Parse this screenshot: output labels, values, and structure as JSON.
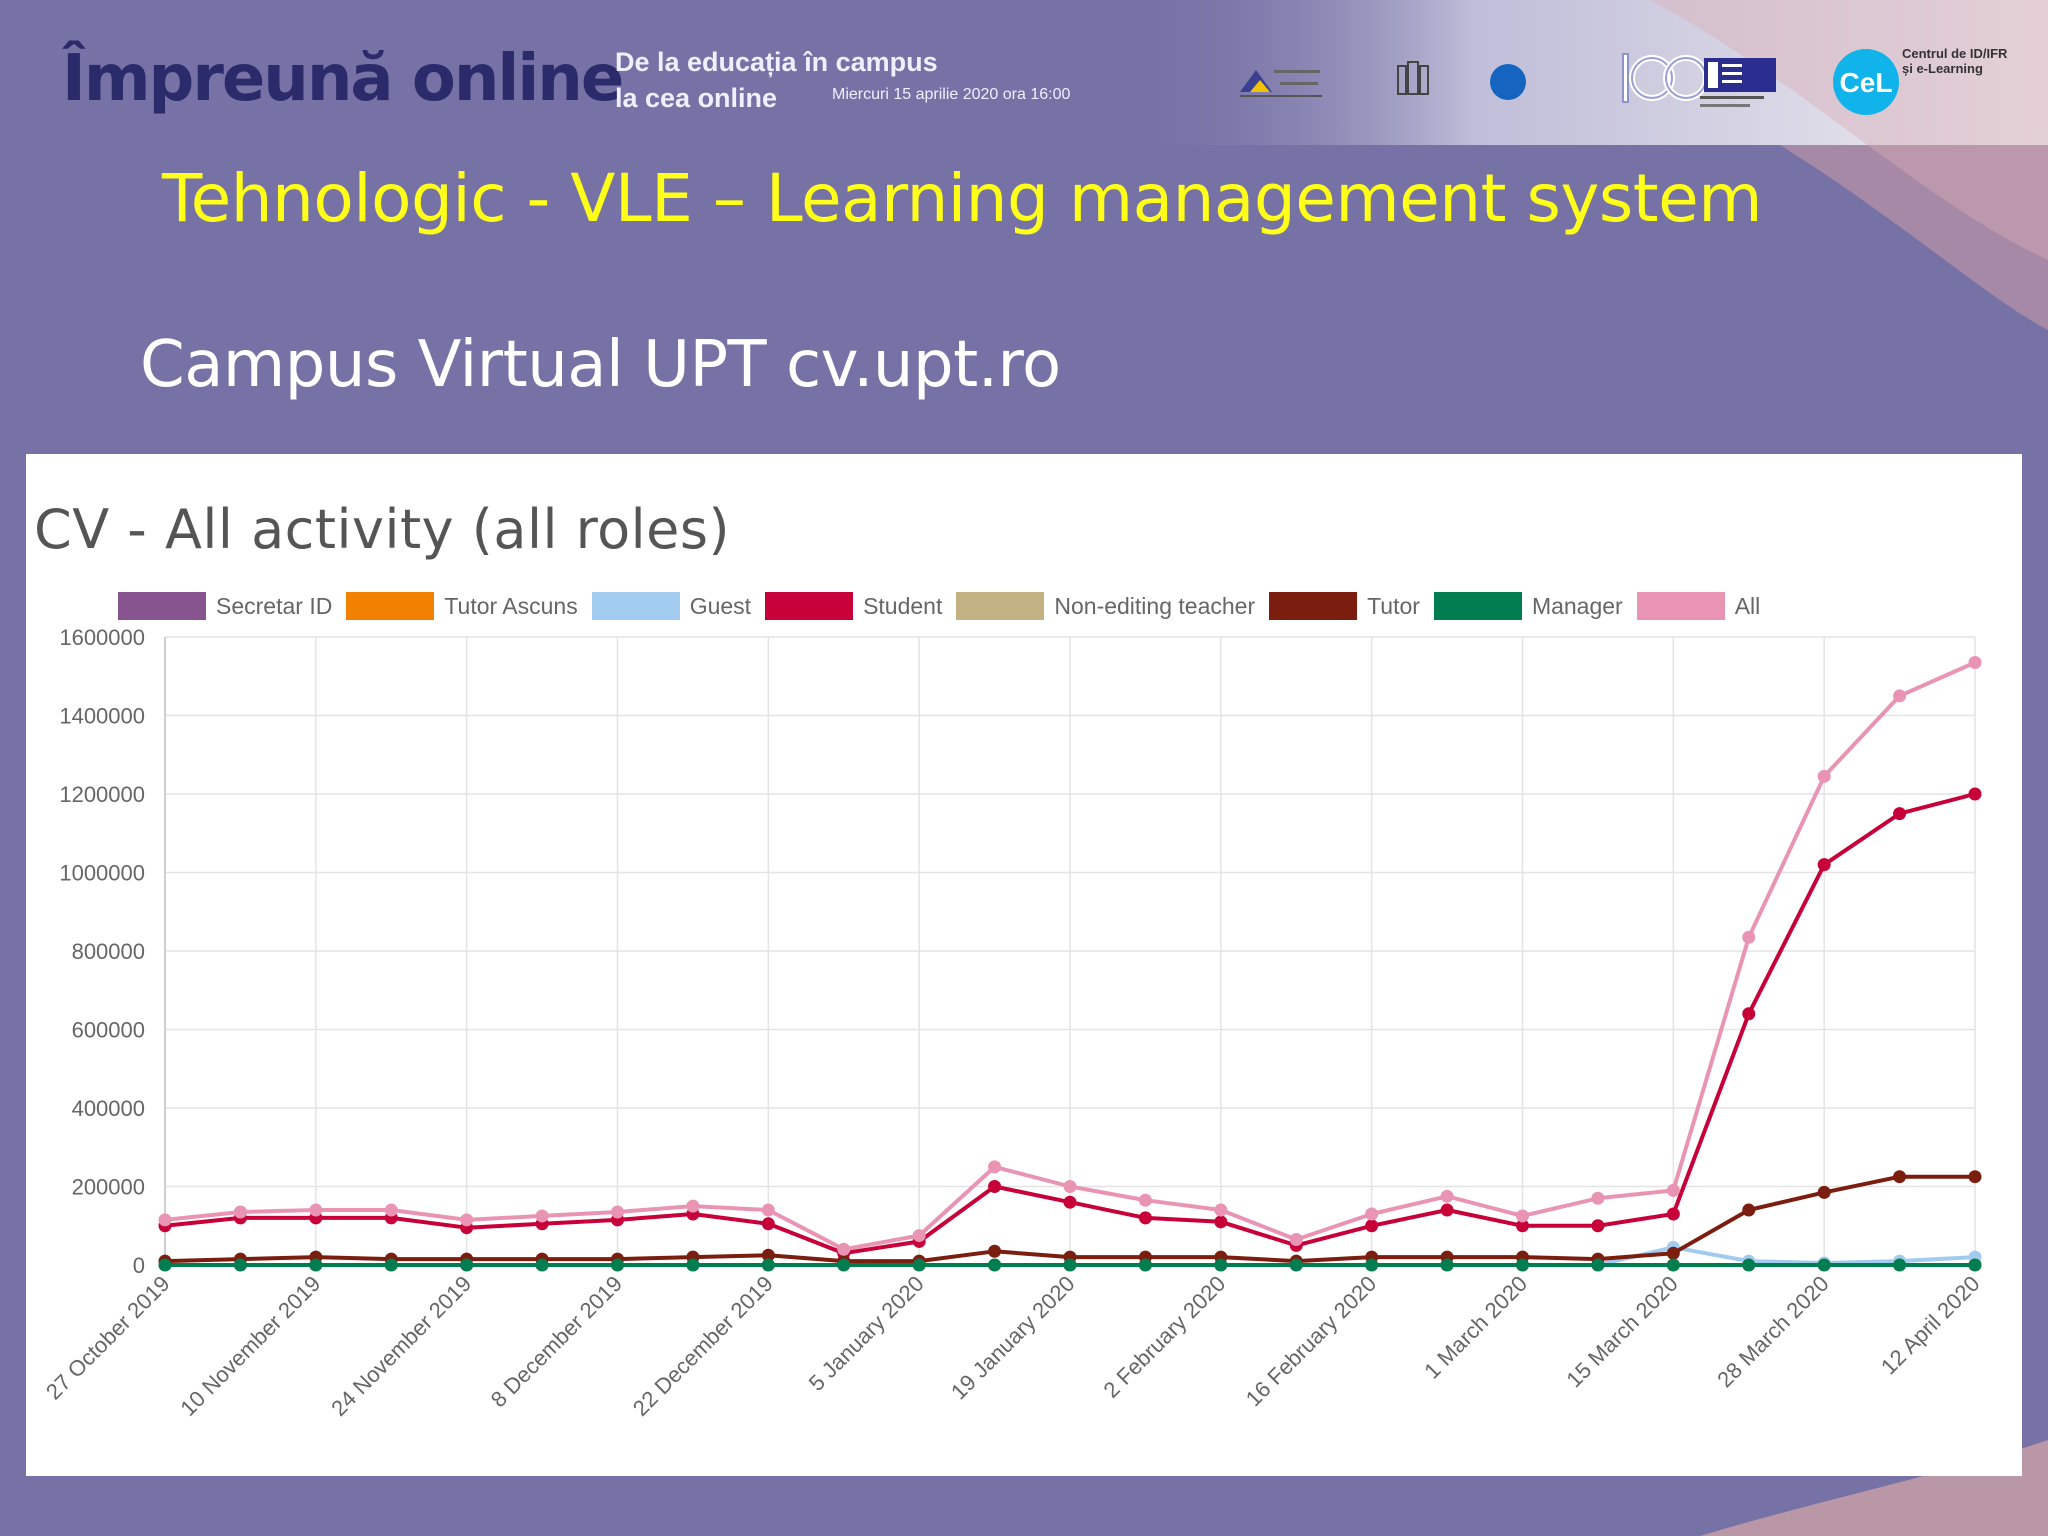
{
  "header": {
    "brand": "Împreună online",
    "tagline_line1": "De la educația în campus",
    "tagline_line2": "la cea online",
    "event_date": "Miercuri 15 aprilie 2020 ora 16:00",
    "logo_cel_text": "CeL",
    "logo_cel_caption_line1": "Centrul de ID/IFR",
    "logo_cel_caption_line2": "și e-Learning"
  },
  "slide": {
    "title": "Tehnologic - VLE – Learning management system",
    "subtitle": "Campus Virtual UPT cv.upt.ro"
  },
  "colors": {
    "background": "#7672a6",
    "title_yellow": "#ffff1a",
    "brand_navy": "#2b2a6b"
  },
  "chart_data": {
    "type": "line",
    "title": "CV - All activity (all roles)",
    "xlabel": "",
    "ylabel": "",
    "ylim": [
      0,
      1600000
    ],
    "yticks": [
      0,
      200000,
      400000,
      600000,
      800000,
      1000000,
      1200000,
      1400000,
      1600000
    ],
    "x": [
      "27 October 2019",
      "3 November 2019",
      "10 November 2019",
      "17 November 2019",
      "24 November 2019",
      "1 December 2019",
      "8 December 2019",
      "15 December 2019",
      "22 December 2019",
      "29 December 2019",
      "5 January 2020",
      "12 January 2020",
      "19 January 2020",
      "26 January 2020",
      "2 February 2020",
      "9 February 2020",
      "16 February 2020",
      "23 February 2020",
      "1 March 2020",
      "8 March 2020",
      "15 March 2020",
      "22 March 2020",
      "28 March 2020",
      "5 April 2020",
      "12 April 2020"
    ],
    "x_tick_labels": [
      "27 October 2019",
      "10 November 2019",
      "24 November 2019",
      "8 December 2019",
      "22 December 2019",
      "5 January 2020",
      "19 January 2020",
      "2 February 2020",
      "16 February 2020",
      "1 March 2020",
      "15 March 2020",
      "28 March 2020",
      "12 April 2020"
    ],
    "grid": true,
    "legend_position": "top",
    "series": [
      {
        "name": "Secretar ID",
        "color": "#87548f",
        "values": [
          0,
          0,
          0,
          0,
          0,
          0,
          0,
          0,
          0,
          0,
          0,
          0,
          0,
          0,
          0,
          0,
          0,
          0,
          0,
          0,
          0,
          0,
          0,
          0,
          0
        ]
      },
      {
        "name": "Tutor Ascuns",
        "color": "#f28100",
        "values": [
          0,
          0,
          0,
          0,
          0,
          0,
          0,
          0,
          0,
          0,
          0,
          0,
          0,
          0,
          0,
          0,
          0,
          0,
          0,
          0,
          0,
          0,
          0,
          0,
          0
        ]
      },
      {
        "name": "Guest",
        "color": "#a2cbf0",
        "values": [
          0,
          0,
          0,
          0,
          0,
          0,
          0,
          0,
          0,
          0,
          0,
          0,
          0,
          0,
          0,
          0,
          0,
          0,
          0,
          0,
          45000,
          10000,
          5000,
          10000,
          20000
        ]
      },
      {
        "name": "Student",
        "color": "#c70039",
        "values": [
          100000,
          120000,
          120000,
          120000,
          95000,
          105000,
          115000,
          130000,
          105000,
          30000,
          60000,
          200000,
          160000,
          120000,
          110000,
          50000,
          100000,
          140000,
          100000,
          100000,
          130000,
          640000,
          1020000,
          1150000,
          1200000
        ]
      },
      {
        "name": "Non-editing teacher",
        "color": "#c2b283",
        "values": [
          0,
          0,
          0,
          0,
          0,
          0,
          0,
          0,
          0,
          0,
          0,
          0,
          0,
          0,
          0,
          0,
          0,
          0,
          0,
          0,
          0,
          0,
          0,
          0,
          0
        ]
      },
      {
        "name": "Tutor",
        "color": "#7b1d0f",
        "values": [
          10000,
          15000,
          20000,
          15000,
          15000,
          15000,
          15000,
          20000,
          25000,
          10000,
          10000,
          35000,
          20000,
          20000,
          20000,
          10000,
          20000,
          20000,
          20000,
          15000,
          30000,
          140000,
          185000,
          225000,
          225000
        ]
      },
      {
        "name": "Manager",
        "color": "#007e4f",
        "values": [
          0,
          0,
          0,
          0,
          0,
          0,
          0,
          0,
          0,
          0,
          0,
          0,
          0,
          0,
          0,
          0,
          0,
          0,
          0,
          0,
          0,
          0,
          0,
          0,
          0
        ]
      },
      {
        "name": "All",
        "color": "#ea94b4",
        "values": [
          115000,
          135000,
          140000,
          140000,
          115000,
          125000,
          135000,
          150000,
          140000,
          40000,
          75000,
          250000,
          200000,
          165000,
          140000,
          65000,
          130000,
          175000,
          125000,
          170000,
          190000,
          835000,
          1245000,
          1450000,
          1535000
        ]
      }
    ]
  }
}
